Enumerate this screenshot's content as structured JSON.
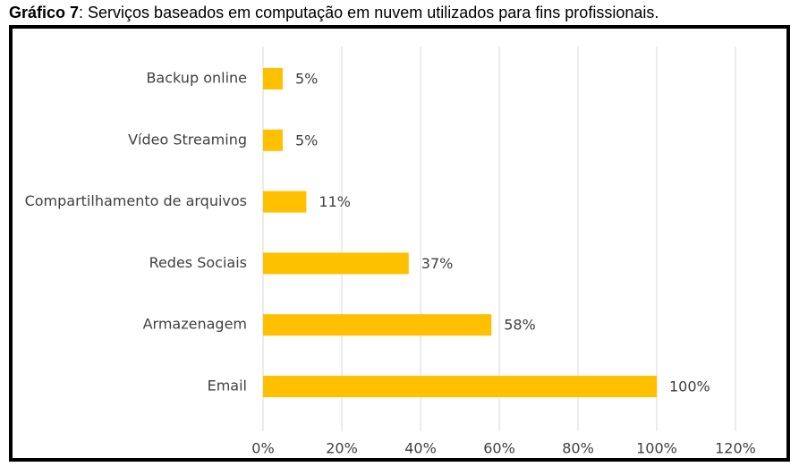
{
  "caption": {
    "label": "Gráfico 7",
    "text": ": Serviços baseados em computação em nuvem utilizados para fins profissionais."
  },
  "chart_data": {
    "type": "bar",
    "orientation": "horizontal",
    "categories": [
      "Backup online",
      "Vídeo Streaming",
      "Compartilhamento de arquivos",
      "Redes Sociais",
      "Armazenagem",
      "Email"
    ],
    "values": [
      5,
      5,
      11,
      37,
      58,
      100
    ],
    "data_labels": [
      "5%",
      "5%",
      "11%",
      "37%",
      "58%",
      "100%"
    ],
    "x_ticks": [
      0,
      20,
      40,
      60,
      80,
      100,
      120
    ],
    "x_tick_labels": [
      "0%",
      "20%",
      "40%",
      "60%",
      "80%",
      "100%",
      "120%"
    ],
    "xlim": [
      0,
      120
    ],
    "title": "",
    "xlabel": "",
    "ylabel": "",
    "grid": "vertical",
    "legend": "none",
    "colors": {
      "bar": "#FFC000",
      "grid": "#D9D9D9",
      "text": "#404040"
    }
  }
}
